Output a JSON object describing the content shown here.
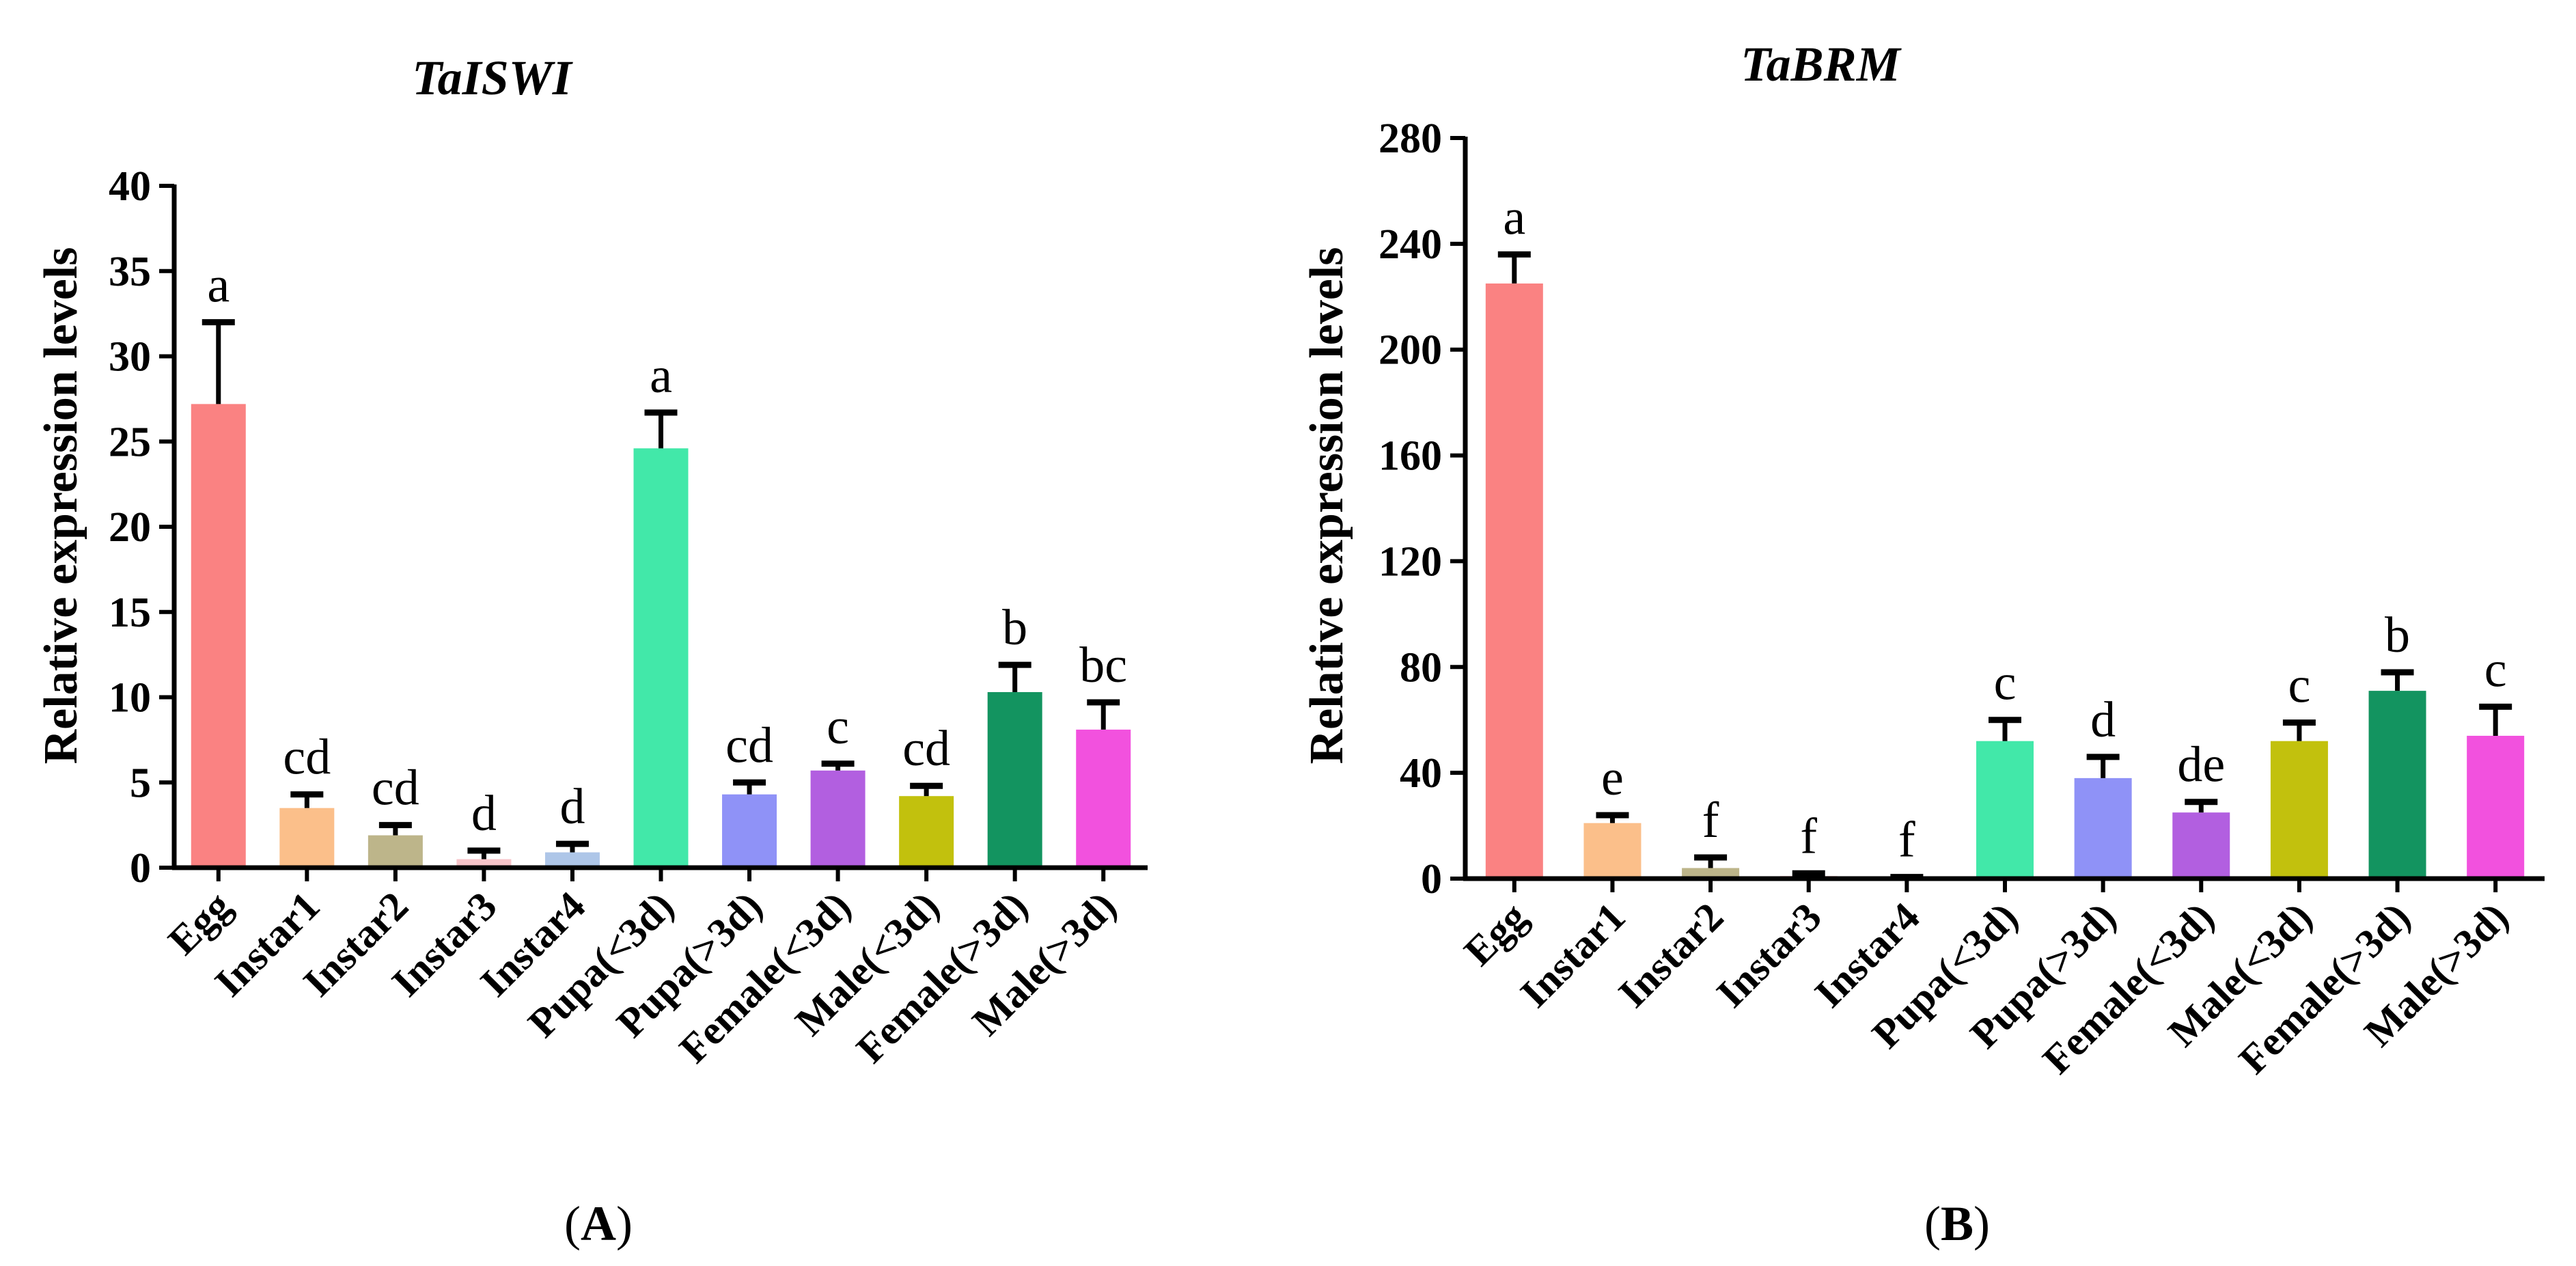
{
  "colors": [
    "#fa8282",
    "#fbbf8a",
    "#bdb58a",
    "#f7c4c9",
    "#aec6e8",
    "#42e8a9",
    "#8f92f7",
    "#b25fe0",
    "#c2c10d",
    "#139460",
    "#f251de"
  ],
  "chart_data": [
    {
      "type": "bar",
      "panel": "A",
      "title": "TaISWI",
      "ylabel": "Relative expression levels",
      "xlabel": "",
      "ylim": [
        0,
        40
      ],
      "yticks": [
        0,
        5,
        10,
        15,
        20,
        25,
        30,
        35,
        40
      ],
      "categories": [
        "Egg",
        "Instar1",
        "Instar2",
        "Instar3",
        "Instar4",
        "Pupa(<3d)",
        "Pupa(>3d)",
        "Female(<3d)",
        "Male(<3d)",
        "Female(>3d)",
        "Male(>3d)"
      ],
      "values": [
        27.2,
        3.5,
        1.9,
        0.5,
        0.9,
        24.6,
        4.3,
        5.7,
        4.2,
        10.3,
        8.1
      ],
      "errors": [
        4.8,
        0.8,
        0.6,
        0.5,
        0.5,
        2.1,
        0.7,
        0.4,
        0.6,
        1.6,
        1.6
      ],
      "letters": [
        "a",
        "cd",
        "cd",
        "d",
        "d",
        "a",
        "cd",
        "c",
        "cd",
        "b",
        "bc"
      ]
    },
    {
      "type": "bar",
      "panel": "B",
      "title": "TaBRM",
      "ylabel": "Relative expression levels",
      "xlabel": "",
      "ylim": [
        0,
        280
      ],
      "yticks": [
        0,
        40,
        80,
        120,
        160,
        200,
        240,
        280
      ],
      "categories": [
        "Egg",
        "Instar1",
        "Instar2",
        "Instar3",
        "Instar4",
        "Pupa(<3d)",
        "Pupa(>3d)",
        "Female(<3d)",
        "Male(<3d)",
        "Female(>3d)",
        "Male(>3d)"
      ],
      "values": [
        225,
        21,
        4,
        1,
        0.3,
        52,
        38,
        25,
        52,
        71,
        54
      ],
      "errors": [
        11,
        3,
        4,
        1,
        0.3,
        8,
        8,
        4,
        7,
        7,
        11
      ],
      "letters": [
        "a",
        "e",
        "f",
        "f",
        "f",
        "c",
        "d",
        "de",
        "c",
        "b",
        "c"
      ]
    }
  ]
}
